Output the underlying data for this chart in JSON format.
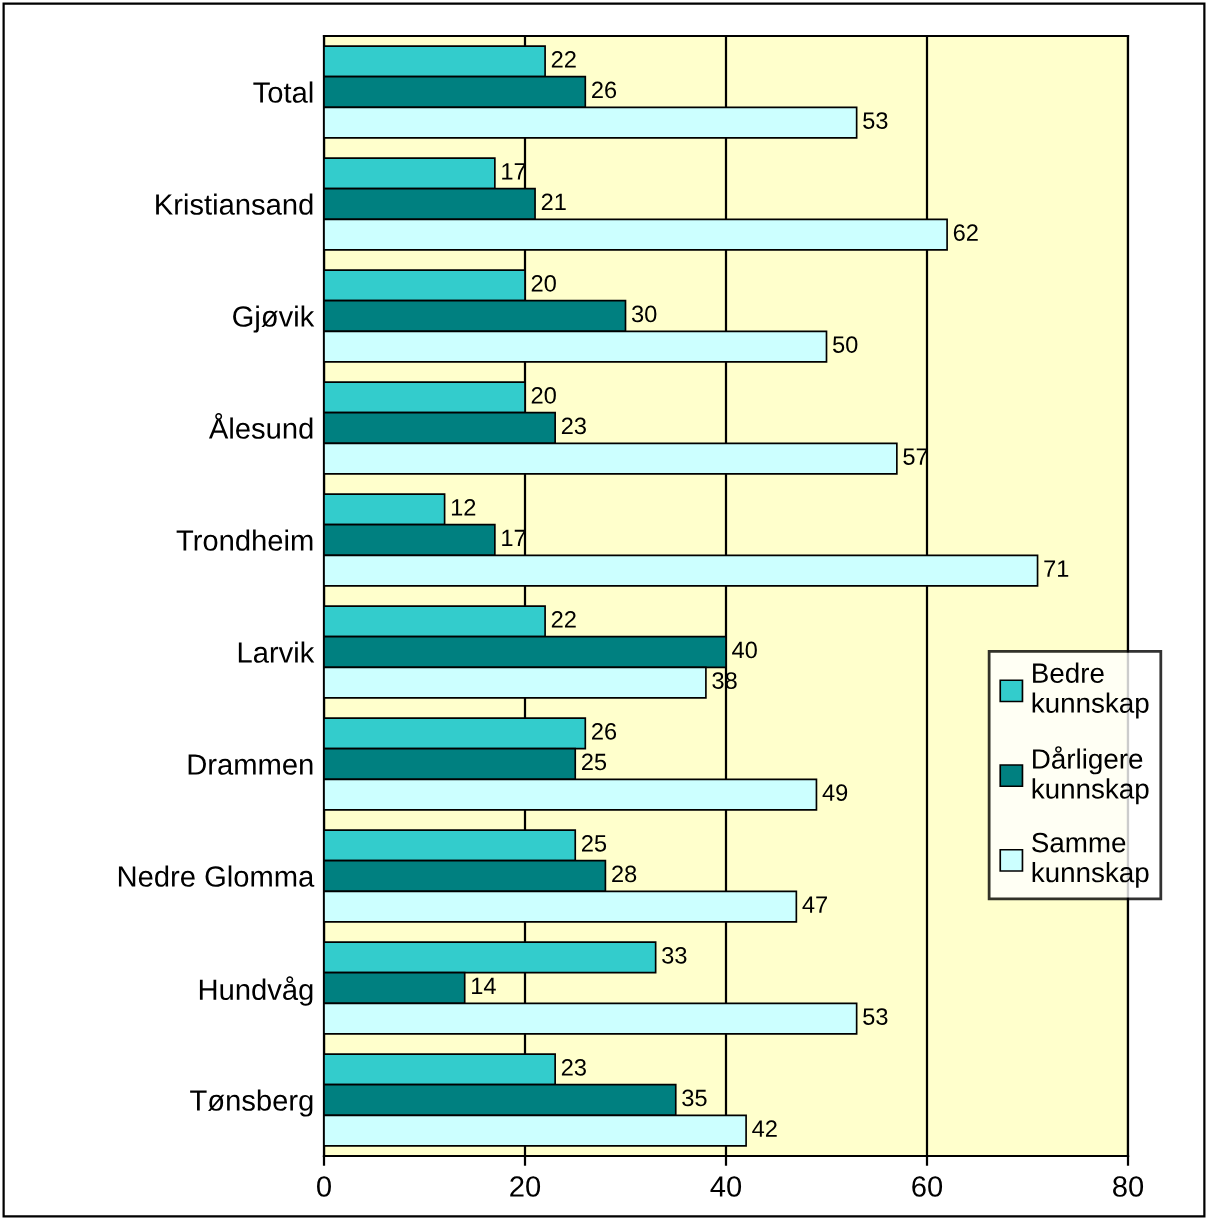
{
  "chart_data": {
    "type": "bar",
    "orientation": "horizontal",
    "categories": [
      "Total",
      "Kristiansand",
      "Gjøvik",
      "Ålesund",
      "Trondheim",
      "Larvik",
      "Drammen",
      "Nedre Glomma",
      "Hundvåg",
      "Tønsberg"
    ],
    "series": [
      {
        "name": "Bedre kunnskap",
        "color": "#33cccc",
        "values": [
          22,
          17,
          20,
          20,
          12,
          22,
          26,
          25,
          33,
          23
        ]
      },
      {
        "name": "Dårligere kunnskap",
        "color": "#008080",
        "values": [
          26,
          21,
          30,
          23,
          17,
          40,
          25,
          28,
          14,
          35
        ]
      },
      {
        "name": "Samme kunnskap",
        "color": "#ccffff",
        "values": [
          53,
          62,
          50,
          57,
          71,
          38,
          49,
          47,
          53,
          42
        ]
      }
    ],
    "xlim": [
      0,
      80
    ],
    "xticks": [
      0,
      20,
      40,
      60,
      80
    ],
    "grid": "x",
    "legend": "right",
    "data_labels": true
  }
}
